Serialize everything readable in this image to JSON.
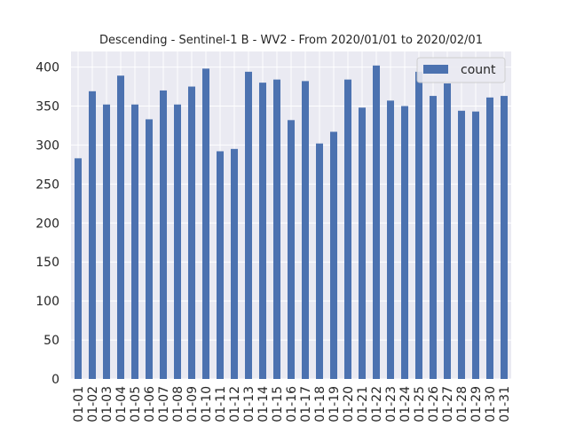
{
  "chart_data": {
    "type": "bar",
    "title": "Descending - Sentinel-1 B - WV2 - From 2020/01/01 to 2020/02/01",
    "xlabel": "",
    "ylabel": "",
    "ylim": [
      0,
      420
    ],
    "yticks": [
      0,
      50,
      100,
      150,
      200,
      250,
      300,
      350,
      400
    ],
    "grid": true,
    "legend_position": "top-right",
    "categories": [
      "01-01",
      "01-02",
      "01-03",
      "01-04",
      "01-05",
      "01-06",
      "01-07",
      "01-08",
      "01-09",
      "01-10",
      "01-11",
      "01-12",
      "01-13",
      "01-14",
      "01-15",
      "01-16",
      "01-17",
      "01-18",
      "01-19",
      "01-20",
      "01-21",
      "01-22",
      "01-23",
      "01-24",
      "01-25",
      "01-26",
      "01-27",
      "01-28",
      "01-29",
      "01-30",
      "01-31"
    ],
    "series": [
      {
        "name": "count",
        "color": "#4c72b0",
        "values": [
          283,
          369,
          352,
          389,
          352,
          333,
          370,
          352,
          375,
          398,
          292,
          295,
          394,
          380,
          384,
          332,
          382,
          302,
          317,
          384,
          348,
          402,
          357,
          350,
          394,
          363,
          379,
          344,
          343,
          361,
          363
        ]
      }
    ]
  }
}
